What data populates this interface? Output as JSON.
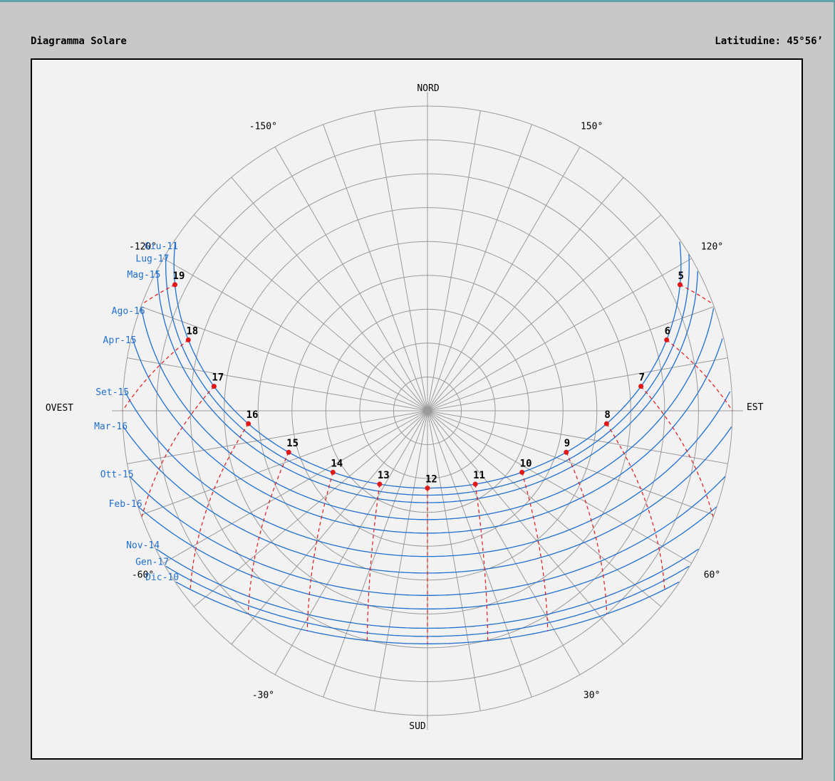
{
  "header": {
    "title": "Diagramma Solare",
    "latitude_label": "Latitudine: 45°56’"
  },
  "colors": {
    "grid": "#9a9a9a",
    "sun_path": "#1f6fd0",
    "hour_line": "#e01818",
    "background": "#f2f2f2"
  },
  "compass": {
    "north": "NORD",
    "south": "SUD",
    "east": "EST",
    "west": "OVEST"
  },
  "azimuth_labels": [
    {
      "text": "-150°",
      "az": -150
    },
    {
      "text": "150°",
      "az": 150
    },
    {
      "text": "-120°",
      "az": -120
    },
    {
      "text": "120°",
      "az": 120
    },
    {
      "text": "-60°",
      "az": -60
    },
    {
      "text": "60°",
      "az": 60
    },
    {
      "text": "-30°",
      "az": -30
    },
    {
      "text": "30°",
      "az": 30
    }
  ],
  "chart_data": {
    "type": "polar-sun-path",
    "latitude_deg": 45.93,
    "sun_paths": [
      {
        "name": "Giu-11",
        "declination": 23.1
      },
      {
        "name": "Lug-17",
        "declination": 21.0
      },
      {
        "name": "Mag-15",
        "declination": 18.8
      },
      {
        "name": "Ago-16",
        "declination": 13.8
      },
      {
        "name": "Apr-15",
        "declination": 9.8
      },
      {
        "name": "Set-15",
        "declination": 2.9
      },
      {
        "name": "Mar-16",
        "declination": -2.0
      },
      {
        "name": "Ott-15",
        "declination": -8.6
      },
      {
        "name": "Feb-16",
        "declination": -12.6
      },
      {
        "name": "Nov-14",
        "declination": -18.3
      },
      {
        "name": "Gen-17",
        "declination": -20.7
      },
      {
        "name": "Dic-10",
        "declination": -22.9
      }
    ],
    "hour_lines": [
      {
        "label": "5",
        "hour": 5
      },
      {
        "label": "6",
        "hour": 6
      },
      {
        "label": "7",
        "hour": 7
      },
      {
        "label": "8",
        "hour": 8
      },
      {
        "label": "9",
        "hour": 9
      },
      {
        "label": "10",
        "hour": 10
      },
      {
        "label": "11",
        "hour": 11
      },
      {
        "label": "12",
        "hour": 12
      },
      {
        "label": "13",
        "hour": 13
      },
      {
        "label": "14",
        "hour": 14
      },
      {
        "label": "15",
        "hour": 15
      },
      {
        "label": "16",
        "hour": 16
      },
      {
        "label": "17",
        "hour": 17
      },
      {
        "label": "18",
        "hour": 18
      },
      {
        "label": "19",
        "hour": 19
      }
    ],
    "hour_marker_series": "Giu-11",
    "altitude_rings_deg": [
      0,
      10,
      20,
      30,
      40,
      50,
      60,
      70,
      80
    ],
    "azimuth_step_deg": 10,
    "azimuth_convention": "0° = Sud, positive towards Est",
    "grid": true
  }
}
